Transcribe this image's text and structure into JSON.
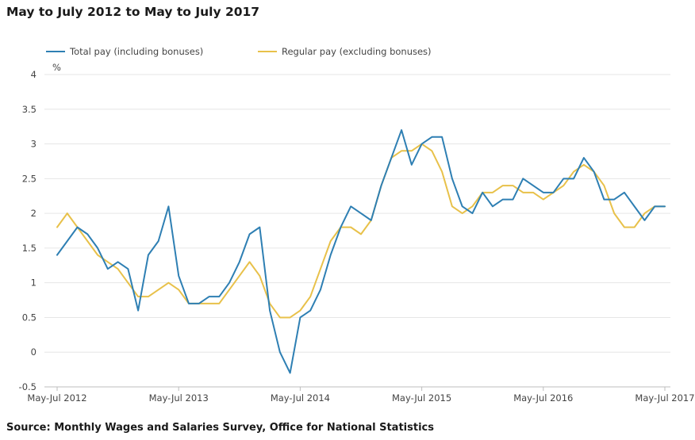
{
  "title": "May to July 2012 to May to July 2017",
  "source": "Source: Monthly Wages and Salaries Survey, Office for National Statistics",
  "chart_data": {
    "type": "line",
    "title": "May to July 2012 to May to July 2017",
    "ylabel": "%",
    "xlabel": "",
    "ylim": [
      -0.5,
      4
    ],
    "yticks": [
      "4",
      "3.5",
      "3",
      "2.5",
      "2",
      "1.5",
      "1",
      "0.5",
      "0",
      "-0.5"
    ],
    "xtick_labels": [
      "May-Jul 2012",
      "May-Jul 2013",
      "May-Jul 2014",
      "May-Jul 2015",
      "May-Jul 2016",
      "May-Jul 2017"
    ],
    "grid": true,
    "legend_position": "top-left",
    "series": [
      {
        "name": "Total pay (including bonuses)",
        "color": "#2e7fb3",
        "values": [
          1.4,
          1.6,
          1.8,
          1.7,
          1.5,
          1.2,
          1.3,
          1.2,
          0.6,
          1.4,
          1.6,
          2.1,
          1.1,
          0.7,
          0.7,
          0.8,
          0.8,
          1.0,
          1.3,
          1.7,
          1.8,
          0.6,
          0.0,
          -0.3,
          0.5,
          0.6,
          0.9,
          1.4,
          1.8,
          2.1,
          2.0,
          1.9,
          2.4,
          2.8,
          3.2,
          2.7,
          3.0,
          3.1,
          3.1,
          2.5,
          2.1,
          2.0,
          2.3,
          2.1,
          2.2,
          2.2,
          2.5,
          2.4,
          2.3,
          2.3,
          2.5,
          2.5,
          2.8,
          2.6,
          2.2,
          2.2,
          2.3,
          2.1,
          1.9,
          2.1,
          2.1
        ]
      },
      {
        "name": "Regular pay (excluding bonuses)",
        "color": "#e8c14a",
        "values": [
          1.8,
          2.0,
          1.8,
          1.6,
          1.4,
          1.3,
          1.2,
          1.0,
          0.8,
          0.8,
          0.9,
          1.0,
          0.9,
          0.7,
          0.7,
          0.7,
          0.7,
          0.9,
          1.1,
          1.3,
          1.1,
          0.7,
          0.5,
          0.5,
          0.6,
          0.8,
          1.2,
          1.6,
          1.8,
          1.8,
          1.7,
          1.9,
          2.4,
          2.8,
          2.9,
          2.9,
          3.0,
          2.9,
          2.6,
          2.1,
          2.0,
          2.1,
          2.3,
          2.3,
          2.4,
          2.4,
          2.3,
          2.3,
          2.2,
          2.3,
          2.4,
          2.6,
          2.7,
          2.6,
          2.4,
          2.0,
          1.8,
          1.8,
          2.0,
          2.1,
          2.1
        ]
      }
    ]
  }
}
